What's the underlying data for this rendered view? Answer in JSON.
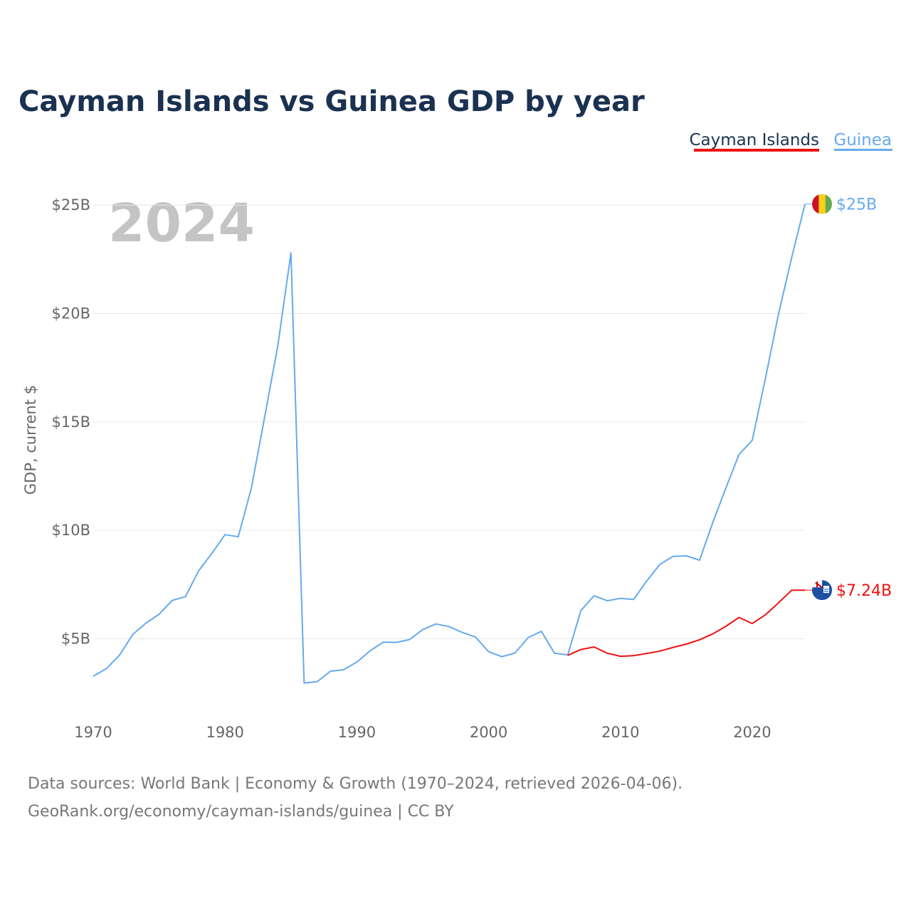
{
  "colors": {
    "title": "#1b3151",
    "cayman": "#ee1111",
    "guinea": "#66aaee",
    "grid": "#e6e6e6",
    "axis_text": "#666666",
    "watermark": "#c4c4c4",
    "guinea_flag_red": "#ce1126",
    "guinea_flag_yellow": "#fcd116",
    "guinea_flag_green": "#6aa84f",
    "cayman_flag_blue": "#1f4fa0"
  },
  "chart_data": {
    "type": "line",
    "title": "Cayman Islands vs Guinea GDP by year",
    "ylabel": "GDP, current $",
    "xlabel": "",
    "year_watermark": "2024",
    "xlim": [
      1970,
      2024
    ],
    "ylim": [
      1500000000,
      25500000000
    ],
    "x_ticks": [
      1970,
      1980,
      1990,
      2000,
      2010,
      2020
    ],
    "x_tick_labels": [
      "1970",
      "1980",
      "1990",
      "2000",
      "2010",
      "2020"
    ],
    "y_ticks": [
      5000000000,
      10000000000,
      15000000000,
      20000000000,
      25000000000
    ],
    "y_tick_labels": [
      "$5B",
      "$10B",
      "$15B",
      "$20B",
      "$25B"
    ],
    "legend": [
      "Cayman Islands",
      "Guinea"
    ],
    "legend_position": "top-right",
    "series": [
      {
        "name": "Guinea",
        "color": "#66aaee",
        "end_label": "$25B",
        "x": [
          1970,
          1971,
          1972,
          1973,
          1974,
          1975,
          1976,
          1977,
          1978,
          1979,
          1980,
          1981,
          1982,
          1983,
          1984,
          1985,
          1986,
          1987,
          1988,
          1989,
          1990,
          1991,
          1992,
          1993,
          1994,
          1995,
          1996,
          1997,
          1998,
          1999,
          2000,
          2001,
          2002,
          2003,
          2004,
          2005,
          2006,
          2007,
          2008,
          2009,
          2010,
          2011,
          2012,
          2013,
          2014,
          2015,
          2016,
          2017,
          2018,
          2019,
          2020,
          2021,
          2022,
          2023,
          2024
        ],
        "values": [
          3.27,
          3.62,
          4.24,
          5.2,
          5.72,
          6.13,
          6.77,
          6.94,
          8.13,
          8.94,
          9.8,
          9.7,
          11.95,
          15.2,
          18.5,
          22.8,
          2.95,
          3.02,
          3.5,
          3.57,
          3.92,
          4.44,
          4.84,
          4.83,
          4.96,
          5.42,
          5.68,
          5.56,
          5.29,
          5.08,
          4.4,
          4.17,
          4.34,
          5.05,
          5.34,
          4.33,
          4.25,
          6.3,
          6.98,
          6.75,
          6.86,
          6.81,
          7.67,
          8.43,
          8.8,
          8.82,
          8.62,
          10.35,
          11.95,
          13.5,
          14.15,
          17.0,
          20.0,
          22.6,
          25.05
        ]
      },
      {
        "name": "Cayman Islands",
        "color": "#ee1111",
        "end_label": "$7.24B",
        "x": [
          2006,
          2007,
          2008,
          2009,
          2010,
          2011,
          2012,
          2013,
          2014,
          2015,
          2016,
          2017,
          2018,
          2019,
          2020,
          2021,
          2022,
          2023,
          2024
        ],
        "values": [
          4.23,
          4.5,
          4.62,
          4.33,
          4.19,
          4.22,
          4.32,
          4.43,
          4.6,
          4.75,
          4.95,
          5.22,
          5.57,
          5.98,
          5.7,
          6.1,
          6.66,
          7.24,
          7.24
        ]
      }
    ]
  },
  "source": {
    "line1": "Data sources: World Bank | Economy & Growth (1970–2024, retrieved 2026-04-06).",
    "line2": "GeoRank.org/economy/cayman-islands/guinea | CC BY"
  }
}
